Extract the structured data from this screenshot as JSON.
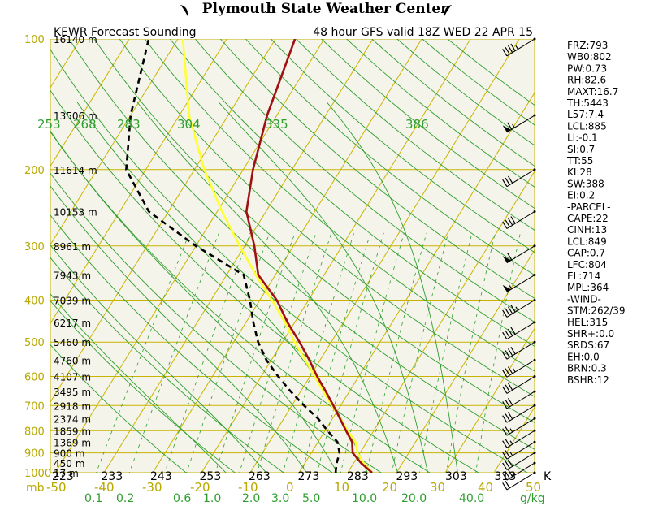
{
  "header": {
    "title": "Plymouth State Weather Center",
    "subtitle_left": "KEWR Forecast Sounding",
    "subtitle_right": "48 hour GFS valid 18Z WED 22 APR 15"
  },
  "colors": {
    "grid": "#c8b400",
    "plot_bg": "#f4f4ea",
    "dry_adiabat": "#2f9e2f",
    "moist_adiabat": "#2f9e2f",
    "mixing_ratio": "#2f9e2f",
    "temperature": "#a01010",
    "dewpoint": "#000000",
    "parcel": "#ffff33"
  },
  "chart_data": {
    "type": "line",
    "diagram": "skew-T log-P",
    "xlabel": "K",
    "ylabel": "mb",
    "pressure_ticks": [
      100,
      200,
      300,
      400,
      500,
      600,
      700,
      800,
      900,
      1000
    ],
    "height_labels": [
      {
        "p": 100,
        "label": "16140 m"
      },
      {
        "p": 150,
        "label": "13506 m"
      },
      {
        "p": 200,
        "label": "11614 m"
      },
      {
        "p": 250,
        "label": "10153 m"
      },
      {
        "p": 300,
        "label": "8961 m"
      },
      {
        "p": 350,
        "label": "7943 m"
      },
      {
        "p": 400,
        "label": "7039 m"
      },
      {
        "p": 450,
        "label": "6217 m"
      },
      {
        "p": 500,
        "label": "5460 m"
      },
      {
        "p": 550,
        "label": "4760 m"
      },
      {
        "p": 600,
        "label": "4107 m"
      },
      {
        "p": 650,
        "label": "3495 m"
      },
      {
        "p": 700,
        "label": "2918 m"
      },
      {
        "p": 750,
        "label": "2374 m"
      },
      {
        "p": 800,
        "label": "1859 m"
      },
      {
        "p": 850,
        "label": "1369 m"
      },
      {
        "p": 900,
        "label": "900 m"
      },
      {
        "p": 950,
        "label": "450 m"
      },
      {
        "p": 1000,
        "label": "17 m"
      }
    ],
    "kelvin_labels": [
      "223",
      "233",
      "243",
      "253",
      "263",
      "273",
      "283",
      "293",
      "303",
      "313",
      "K"
    ],
    "celsius_ticks": [
      -50,
      -40,
      -30,
      -20,
      -10,
      0,
      10,
      20,
      30,
      40,
      50
    ],
    "celsius_labels": [
      "-50",
      "-40",
      "-30",
      "-20",
      "-10",
      "0",
      "10",
      "20",
      "30",
      "40",
      "50"
    ],
    "mixing_ratio_labels": [
      "0.1",
      "0.2",
      "0.6",
      "1.0",
      "2.0",
      "3.0",
      "5.0",
      "10.0",
      "20.0",
      "40.0",
      "g/kg"
    ],
    "theta_e_labels": [
      "253",
      "268",
      "283",
      "304",
      "335",
      "386"
    ],
    "series": [
      {
        "name": "temperature",
        "points": [
          [
            1000,
            15
          ],
          [
            950,
            11.5
          ],
          [
            900,
            8.5
          ],
          [
            850,
            7
          ],
          [
            800,
            4.3
          ],
          [
            750,
            1.5
          ],
          [
            700,
            -1.5
          ],
          [
            650,
            -4.8
          ],
          [
            600,
            -8.5
          ],
          [
            550,
            -12.2
          ],
          [
            500,
            -16.5
          ],
          [
            450,
            -21.5
          ],
          [
            400,
            -26.5
          ],
          [
            350,
            -33.5
          ],
          [
            300,
            -38
          ],
          [
            250,
            -44
          ],
          [
            200,
            -48
          ],
          [
            150,
            -52
          ],
          [
            100,
            -56
          ]
        ]
      },
      {
        "name": "dewpoint",
        "points": [
          [
            1000,
            7.5
          ],
          [
            950,
            6.5
          ],
          [
            900,
            5.8
          ],
          [
            850,
            4
          ],
          [
            800,
            0.5
          ],
          [
            750,
            -3
          ],
          [
            700,
            -7.5
          ],
          [
            650,
            -12
          ],
          [
            600,
            -16.5
          ],
          [
            550,
            -21
          ],
          [
            500,
            -25
          ],
          [
            450,
            -28.5
          ],
          [
            400,
            -32
          ],
          [
            350,
            -36.5
          ],
          [
            300,
            -50
          ],
          [
            250,
            -64
          ],
          [
            200,
            -74
          ],
          [
            150,
            -80
          ],
          [
            100,
            -86
          ]
        ]
      },
      {
        "name": "parcel",
        "points": [
          [
            1000,
            15
          ],
          [
            950,
            12
          ],
          [
            900,
            9.5
          ],
          [
            850,
            7.7
          ],
          [
            800,
            4.6
          ],
          [
            750,
            1.6
          ],
          [
            700,
            -1.8
          ],
          [
            650,
            -5.3
          ],
          [
            600,
            -9
          ],
          [
            550,
            -13
          ],
          [
            500,
            -17.5
          ],
          [
            450,
            -22
          ],
          [
            400,
            -27.5
          ],
          [
            350,
            -34
          ],
          [
            300,
            -41
          ],
          [
            250,
            -49
          ],
          [
            200,
            -58
          ],
          [
            150,
            -68
          ],
          [
            100,
            -79
          ]
        ]
      }
    ],
    "wind_barbs": [
      {
        "p": 100,
        "speed_kt": 45
      },
      {
        "p": 150,
        "speed_kt": 65
      },
      {
        "p": 200,
        "speed_kt": 30
      },
      {
        "p": 250,
        "speed_kt": 40
      },
      {
        "p": 300,
        "speed_kt": 60
      },
      {
        "p": 350,
        "speed_kt": 55
      },
      {
        "p": 400,
        "speed_kt": 45
      },
      {
        "p": 450,
        "speed_kt": 40
      },
      {
        "p": 500,
        "speed_kt": 40
      },
      {
        "p": 550,
        "speed_kt": 35
      },
      {
        "p": 600,
        "speed_kt": 30
      },
      {
        "p": 650,
        "speed_kt": 30
      },
      {
        "p": 700,
        "speed_kt": 30
      },
      {
        "p": 750,
        "speed_kt": 25
      },
      {
        "p": 800,
        "speed_kt": 25
      },
      {
        "p": 850,
        "speed_kt": 25
      },
      {
        "p": 900,
        "speed_kt": 30
      },
      {
        "p": 950,
        "speed_kt": 35
      },
      {
        "p": 1000,
        "speed_kt": 20
      }
    ]
  },
  "indices": [
    "FRZ:793",
    "WB0:802",
    "PW:0.73",
    "RH:82.6",
    "MAXT:16.7",
    "TH:5443",
    "L57:7.4",
    "LCL:885",
    "LI:-0.1",
    "SI:0.7",
    "TT:55",
    "KI:28",
    "SW:388",
    "EI:0.2",
    "-PARCEL-",
    "CAPE:22",
    "CINH:13",
    "LCL:849",
    "CAP:0.7",
    "LFC:804",
    "EL:714",
    "MPL:364",
    "-WIND-",
    "STM:262/39",
    "HEL:315",
    "SHR+:0.0",
    "SRDS:67",
    "EH:0.0",
    "BRN:0.3",
    "BSHR:12"
  ]
}
